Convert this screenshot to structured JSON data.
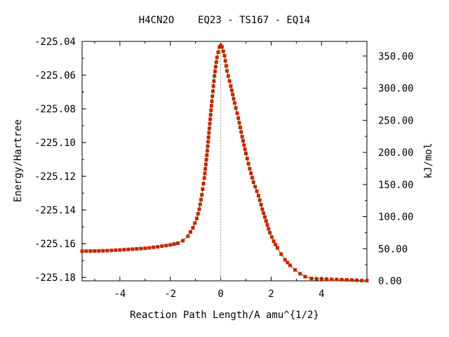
{
  "chart_data": {
    "type": "line",
    "title": "H4CN2O    EQ23 - TS167 - EQ14",
    "xlabel": "Reaction Path Length/A amu^{1/2}",
    "ylabel": "Energy/Hartree",
    "y2label": "kJ/mol",
    "xlim": [
      -5.5,
      5.8
    ],
    "ylim": [
      -225.182,
      -225.04
    ],
    "y2lim": [
      0,
      372.8
    ],
    "x_ticks": [
      "-4",
      "-2",
      "0",
      "2",
      "4"
    ],
    "y_ticks": [
      "-225.04",
      "-225.06",
      "-225.08",
      "-225.10",
      "-225.12",
      "-225.14",
      "-225.16",
      "-225.18"
    ],
    "y2_ticks": [
      "350.00",
      "300.00",
      "250.00",
      "200.00",
      "150.00",
      "100.00",
      "50.00",
      "0.00"
    ],
    "ts_marker_x": 0,
    "line_color": "#00a000",
    "marker_color": "#cc2200",
    "grid": false,
    "series": [
      {
        "points": [
          [
            -5.5,
            -225.1644
          ],
          [
            -5.0,
            -225.1643
          ],
          [
            -4.5,
            -225.1641
          ],
          [
            -4.0,
            -225.1637
          ],
          [
            -3.5,
            -225.1632
          ],
          [
            -3.0,
            -225.1627
          ],
          [
            -2.5,
            -225.1618
          ],
          [
            -2.0,
            -225.1607
          ],
          [
            -1.7,
            -225.1597
          ],
          [
            -1.5,
            -225.1582
          ],
          [
            -1.3,
            -225.1555
          ],
          [
            -1.1,
            -225.1505
          ],
          [
            -0.95,
            -225.145
          ],
          [
            -0.85,
            -225.1395
          ],
          [
            -0.75,
            -225.131
          ],
          [
            -0.65,
            -225.121
          ],
          [
            -0.55,
            -225.1075
          ],
          [
            -0.45,
            -225.0915
          ],
          [
            -0.35,
            -225.0755
          ],
          [
            -0.25,
            -225.0605
          ],
          [
            -0.15,
            -225.0495
          ],
          [
            -0.05,
            -225.0433
          ],
          [
            0.0,
            -225.0425
          ],
          [
            0.05,
            -225.0433
          ],
          [
            0.15,
            -225.0485
          ],
          [
            0.25,
            -225.0575
          ],
          [
            0.4,
            -225.0665
          ],
          [
            0.55,
            -225.0765
          ],
          [
            0.7,
            -225.0855
          ],
          [
            0.85,
            -225.0965
          ],
          [
            1.0,
            -225.1065
          ],
          [
            1.15,
            -225.1155
          ],
          [
            1.3,
            -225.1235
          ],
          [
            1.5,
            -225.1315
          ],
          [
            1.65,
            -225.1395
          ],
          [
            1.8,
            -225.1465
          ],
          [
            1.95,
            -225.1535
          ],
          [
            2.1,
            -225.1585
          ],
          [
            2.25,
            -225.1625
          ],
          [
            2.4,
            -225.1662
          ],
          [
            2.55,
            -225.1695
          ],
          [
            2.75,
            -225.1728
          ],
          [
            2.95,
            -225.1755
          ],
          [
            3.15,
            -225.1778
          ],
          [
            3.35,
            -225.1795
          ],
          [
            3.6,
            -225.1806
          ],
          [
            4.0,
            -225.1809
          ],
          [
            4.4,
            -225.1811
          ],
          [
            4.8,
            -225.1813
          ],
          [
            5.2,
            -225.1815
          ],
          [
            5.6,
            -225.1818
          ],
          [
            5.8,
            -225.1819
          ]
        ]
      }
    ]
  }
}
